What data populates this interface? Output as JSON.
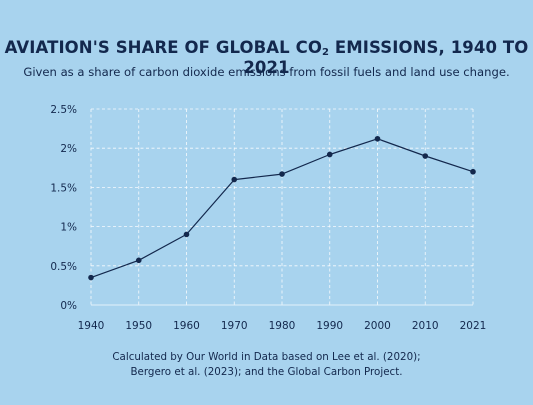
{
  "header": {
    "title_main": "AVIATION'S SHARE OF GLOBAL CO",
    "title_sub": "2",
    "title_tail": " EMISSIONS, 1940 TO 2021",
    "subtitle": "Given as a share of carbon dioxide emissions from fossil fuels and land use change."
  },
  "footer": {
    "source_line1": "Calculated by Our World in Data based on Lee et al. (2020);",
    "source_line2": "Bergero et al. (2023); and the Global Carbon Project."
  },
  "colors": {
    "background": "#a8d3ee",
    "line": "#13284d",
    "grid": "#ffffff"
  },
  "chart_data": {
    "type": "line",
    "title": "AVIATION'S SHARE OF GLOBAL CO2 EMISSIONS, 1940 TO 2021",
    "subtitle": "Given as a share of carbon dioxide emissions from fossil fuels and land use change.",
    "xlabel": "",
    "ylabel": "",
    "x": [
      "1940",
      "1950",
      "1960",
      "1970",
      "1980",
      "1990",
      "2000",
      "2010",
      "2021"
    ],
    "series": [
      {
        "values": [
          0.35,
          0.57,
          0.9,
          1.6,
          1.67,
          1.92,
          2.12,
          1.9,
          1.7
        ]
      }
    ],
    "ylim": [
      0,
      2.5
    ],
    "yticks": [
      {
        "value": 0,
        "label": "0%"
      },
      {
        "value": 0.5,
        "label": "0.5%"
      },
      {
        "value": 1,
        "label": "1%"
      },
      {
        "value": 1.5,
        "label": "1.5%"
      },
      {
        "value": 2,
        "label": "2%"
      },
      {
        "value": 2.5,
        "label": "2.5%"
      }
    ],
    "grid": true,
    "grid_style": "dashed"
  }
}
